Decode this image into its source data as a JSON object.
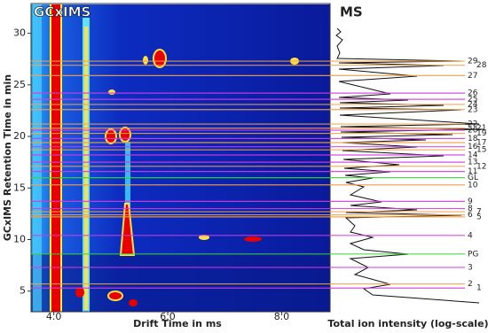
{
  "chart_data": {
    "type": "annotated-heatmap",
    "title": "GCxIMS",
    "side_title": "MS",
    "xlabel": "Drift Time in ms",
    "ylabel": "GCxIMS Retention Time in min",
    "side_xlabel": "Total ion intensity (log-scale)",
    "xlim": [
      3.6,
      8.85
    ],
    "ylim": [
      3.0,
      32.8
    ],
    "xticks": [
      {
        "value": 4,
        "label": "4.0"
      },
      {
        "value": 6,
        "label": "6.0"
      },
      {
        "value": 8,
        "label": "8.0"
      }
    ],
    "yticks": [
      5,
      10,
      15,
      20,
      25,
      30
    ],
    "peaks": [
      {
        "name": "29",
        "value": 27.3,
        "color": "#f4a14a"
      },
      {
        "name": "28",
        "value": 26.9,
        "color": "#f4a14a"
      },
      {
        "name": "27",
        "value": 25.9,
        "color": "#f4a14a"
      },
      {
        "name": "26",
        "value": 24.2,
        "color": "#d63ae0"
      },
      {
        "name": "25",
        "value": 23.6,
        "color": "#d63ae0"
      },
      {
        "name": "24",
        "value": 23.1,
        "color": "#f4a14a"
      },
      {
        "name": "23",
        "value": 22.6,
        "color": "#f4a14a"
      },
      {
        "name": "22",
        "value": 21.2,
        "color": "#f4a14a"
      },
      {
        "name": "21",
        "value": 20.8,
        "color": "#f4a14a"
      },
      {
        "name": "20",
        "value": 20.6,
        "color": "#d63ae0"
      },
      {
        "name": "19",
        "value": 20.3,
        "color": "#f4a14a"
      },
      {
        "name": "18",
        "value": 19.8,
        "color": "#d63ae0"
      },
      {
        "name": "17",
        "value": 19.4,
        "color": "#f4a14a"
      },
      {
        "name": "16",
        "value": 19.0,
        "color": "#d63ae0"
      },
      {
        "name": "15",
        "value": 18.7,
        "color": "#f4a14a"
      },
      {
        "name": "14",
        "value": 18.2,
        "color": "#d63ae0"
      },
      {
        "name": "13",
        "value": 17.5,
        "color": "#d63ae0"
      },
      {
        "name": "12",
        "value": 17.1,
        "color": "#f4a14a"
      },
      {
        "name": "11",
        "value": 16.6,
        "color": "#d63ae0"
      },
      {
        "name": "GL",
        "value": 16.0,
        "color": "#3ad43a"
      },
      {
        "name": "10",
        "value": 15.3,
        "color": "#f4a14a"
      },
      {
        "name": "9",
        "value": 13.7,
        "color": "#d63ae0"
      },
      {
        "name": "8",
        "value": 13.0,
        "color": "#d63ae0"
      },
      {
        "name": "7",
        "value": 12.7,
        "color": "#f4a14a"
      },
      {
        "name": "6",
        "value": 12.4,
        "color": "#f4a14a"
      },
      {
        "name": "5",
        "value": 12.2,
        "color": "#f4a14a"
      },
      {
        "name": "4",
        "value": 10.4,
        "color": "#d63ae0"
      },
      {
        "name": "PG",
        "value": 8.6,
        "color": "#3ad43a"
      },
      {
        "name": "3",
        "value": 7.3,
        "color": "#d63ae0"
      },
      {
        "name": "2",
        "value": 5.7,
        "color": "#f4a14a"
      },
      {
        "name": "1",
        "value": 5.3,
        "color": "#d63ae0"
      }
    ]
  }
}
